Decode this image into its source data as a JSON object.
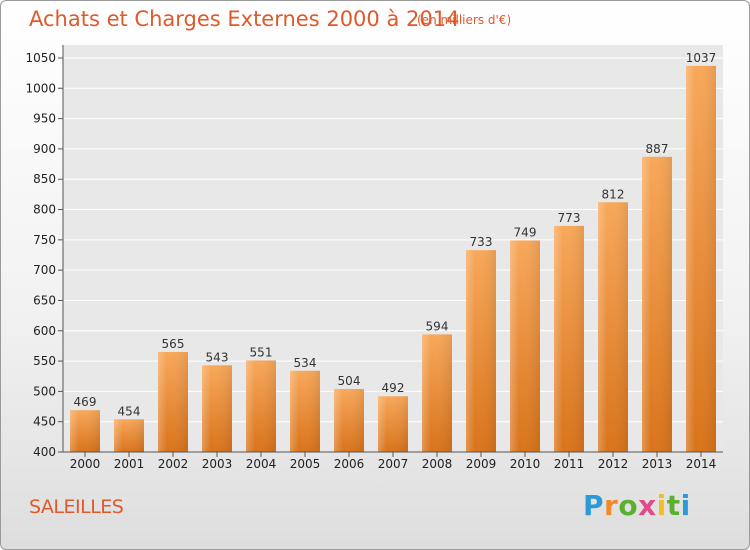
{
  "chart_data": {
    "type": "bar",
    "title": "Achats et Charges Externes 2000 à 2014",
    "subtitle": "(en milliers d'€)",
    "categories": [
      "2000",
      "2001",
      "2002",
      "2003",
      "2004",
      "2005",
      "2006",
      "2007",
      "2008",
      "2009",
      "2010",
      "2011",
      "2012",
      "2013",
      "2014"
    ],
    "values": [
      469,
      454,
      565,
      543,
      551,
      534,
      504,
      492,
      594,
      733,
      749,
      773,
      812,
      887,
      1037
    ],
    "ylim": [
      400,
      1050
    ],
    "yticks": [
      400,
      450,
      500,
      550,
      600,
      650,
      700,
      750,
      800,
      850,
      900,
      950,
      1000,
      1050
    ],
    "grid": true,
    "bar_color": "#f08a2a",
    "xlabel": "",
    "ylabel": ""
  },
  "location": "SALEILLES",
  "logo": {
    "letters": [
      "P",
      "r",
      "o",
      "x",
      "i",
      "t",
      "i"
    ],
    "colors": [
      "#2b9ad6",
      "#f08a2a",
      "#5bb030",
      "#e24a8a",
      "#f0c020",
      "#5bb030",
      "#2b9ad6"
    ]
  }
}
